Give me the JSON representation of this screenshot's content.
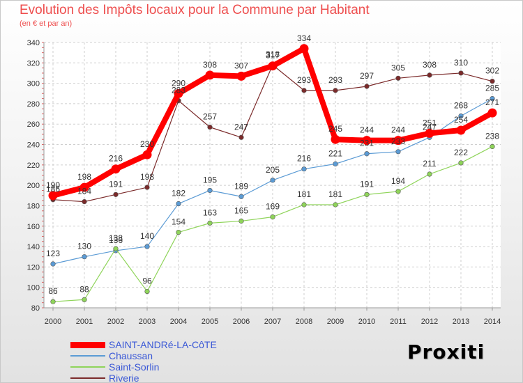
{
  "chart_data": {
    "type": "line",
    "title": "Evolution des Impôts locaux pour la Commune par Habitant",
    "subtitle": "(en € et par an)",
    "x": [
      "2000",
      "2001",
      "2002",
      "2003",
      "2004",
      "2005",
      "2006",
      "2007",
      "2008",
      "2009",
      "2010",
      "2011",
      "2012",
      "2013",
      "2014"
    ],
    "ylim": [
      80,
      340
    ],
    "yticks": [
      "80",
      "100",
      "120",
      "140",
      "160",
      "180",
      "200",
      "220",
      "240",
      "260",
      "280",
      "300",
      "320",
      "340"
    ],
    "grid": true,
    "legend_position": "bottom-left",
    "series": [
      {
        "name": "SAINT-ANDRé-LA-CôTE",
        "color": "#ff0000",
        "values": [
          190,
          198,
          216,
          230,
          290,
          308,
          307,
          317,
          334,
          245,
          244,
          244,
          251,
          254,
          271
        ]
      },
      {
        "name": "Chaussan",
        "color": "#5b9bd5",
        "values": [
          123,
          130,
          136,
          140,
          182,
          195,
          189,
          205,
          216,
          221,
          231,
          233,
          247,
          268,
          285
        ]
      },
      {
        "name": "Saint-Sorlin",
        "color": "#8fd45a",
        "values": [
          86,
          88,
          138,
          96,
          154,
          163,
          165,
          169,
          181,
          181,
          191,
          194,
          211,
          222,
          238
        ]
      },
      {
        "name": "Riverie",
        "color": "#7b2a2a",
        "values": [
          186,
          184,
          191,
          198,
          283,
          257,
          247,
          318,
          293,
          293,
          297,
          305,
          308,
          310,
          302
        ]
      }
    ]
  },
  "logo": {
    "letters": [
      "P",
      "r",
      "o",
      "x",
      "i",
      "t",
      "i"
    ],
    "colors": [
      "#2a8fd6",
      "#e8a01e",
      "#e8a01e",
      "#3a6fd8",
      "#e84a2a",
      "#8ac43a",
      "#e8a01e"
    ]
  }
}
